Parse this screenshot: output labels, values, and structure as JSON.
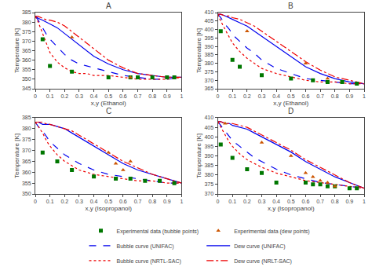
{
  "chart_data": [
    {
      "type": "line",
      "title": "A",
      "xlabel": "x,y (Ethanol)",
      "ylabel": "Temperature [K]",
      "xlim": [
        0,
        1
      ],
      "xticks": [
        0,
        0.1,
        0.2,
        0.3,
        0.4,
        0.5,
        0.6,
        0.7,
        0.8,
        0.9,
        1
      ],
      "ylim": [
        345,
        385
      ],
      "yticks": [
        345,
        350,
        355,
        360,
        365,
        370,
        375,
        380,
        385
      ],
      "grid": false,
      "legend": "bottom",
      "series": [
        {
          "name": "Experimental data (bubble points)",
          "type": "scatter",
          "marker": "square",
          "color": "#007700",
          "x": [
            0.05,
            0.1,
            0.25,
            0.5,
            0.65,
            0.7,
            0.8,
            0.9,
            0.95
          ],
          "values": [
            371,
            357,
            354,
            351,
            351,
            351,
            351,
            351,
            351
          ]
        },
        {
          "name": "Experimental data (dew points)",
          "type": "scatter",
          "marker": "triangle-up",
          "color": "#CC5500",
          "x": [
            0.25,
            0.65
          ],
          "values": [
            372,
            351
          ]
        },
        {
          "name": "Bubble curve (UNIFAC)",
          "type": "line",
          "line_style": "dash",
          "color": "#0000EE",
          "x": [
            0.0,
            0.02,
            0.05,
            0.08,
            0.1,
            0.15,
            0.2,
            0.25,
            0.3,
            0.35,
            0.4,
            0.5,
            0.6,
            0.7,
            0.8,
            0.9,
            1.0
          ],
          "values": [
            383,
            381,
            377,
            373,
            371,
            367,
            363,
            360,
            358,
            357,
            356,
            354,
            352,
            351,
            350,
            350,
            351
          ]
        },
        {
          "name": "Dew curve (UNIFAC)",
          "type": "line",
          "line_style": "solid",
          "color": "#0000EE",
          "x": [
            0.0,
            0.02,
            0.05,
            0.08,
            0.1,
            0.15,
            0.2,
            0.25,
            0.3,
            0.35,
            0.4,
            0.5,
            0.6,
            0.7,
            0.8,
            0.9,
            1.0
          ],
          "values": [
            383,
            382,
            381,
            380,
            379,
            377,
            374,
            371,
            368,
            365,
            362,
            358,
            355,
            353,
            352,
            351,
            351
          ]
        },
        {
          "name": "Bubble curve (NRTL-SAC)",
          "type": "line",
          "line_style": "dot",
          "color": "#EE0000",
          "x": [
            0.0,
            0.02,
            0.05,
            0.08,
            0.1,
            0.15,
            0.2,
            0.25,
            0.3,
            0.35,
            0.4,
            0.5,
            0.6,
            0.7,
            0.8,
            0.9,
            1.0
          ],
          "values": [
            383,
            380,
            374,
            368,
            364,
            359,
            356,
            354,
            353,
            353,
            352,
            352,
            351,
            350,
            350,
            350,
            351
          ]
        },
        {
          "name": "Dew curve (NRLT-SAC)",
          "type": "line",
          "line_style": "dashdot",
          "color": "#EE0000",
          "x": [
            0.0,
            0.02,
            0.05,
            0.08,
            0.1,
            0.15,
            0.2,
            0.25,
            0.3,
            0.35,
            0.4,
            0.5,
            0.6,
            0.7,
            0.8,
            0.9,
            1.0
          ],
          "values": [
            383,
            383,
            382,
            381,
            381,
            380,
            378,
            375,
            372,
            369,
            366,
            360,
            356,
            353,
            352,
            351,
            351
          ]
        }
      ]
    },
    {
      "type": "line",
      "title": "B",
      "xlabel": "x,y (Ethanol)",
      "ylabel": "Temperature [K]",
      "xlim": [
        0,
        1
      ],
      "xticks": [
        0,
        0.1,
        0.2,
        0.3,
        0.4,
        0.5,
        0.6,
        0.7,
        0.8,
        0.9,
        1
      ],
      "ylim": [
        365,
        410
      ],
      "yticks": [
        365,
        370,
        375,
        380,
        385,
        390,
        395,
        400,
        405,
        410
      ],
      "grid": false,
      "legend": "bottom",
      "series": [
        {
          "name": "Experimental data (bubble points)",
          "type": "scatter",
          "marker": "square",
          "color": "#007700",
          "x": [
            0.02,
            0.1,
            0.15,
            0.3,
            0.5,
            0.65,
            0.75,
            0.85,
            0.95
          ],
          "values": [
            399,
            382,
            378,
            373,
            371,
            370,
            369,
            369,
            368
          ]
        },
        {
          "name": "Experimental data (dew points)",
          "type": "scatter",
          "marker": "triangle-up",
          "color": "#CC5500",
          "x": [
            0.2,
            0.6,
            0.75
          ],
          "values": [
            399,
            380,
            371
          ]
        },
        {
          "name": "Bubble curve (UNIFAC)",
          "type": "line",
          "line_style": "dash",
          "color": "#0000EE",
          "x": [
            0.0,
            0.02,
            0.05,
            0.08,
            0.1,
            0.15,
            0.2,
            0.25,
            0.3,
            0.4,
            0.5,
            0.6,
            0.7,
            0.8,
            0.9,
            1.0
          ],
          "values": [
            409,
            407,
            403,
            400,
            397,
            393,
            389,
            386,
            382,
            377,
            374,
            371,
            370,
            369,
            368,
            368
          ]
        },
        {
          "name": "Dew curve (UNIFAC)",
          "type": "line",
          "line_style": "solid",
          "color": "#0000EE",
          "x": [
            0.0,
            0.02,
            0.05,
            0.08,
            0.1,
            0.15,
            0.2,
            0.25,
            0.3,
            0.4,
            0.5,
            0.6,
            0.7,
            0.8,
            0.9,
            1.0
          ],
          "values": [
            409,
            409,
            408,
            407,
            406,
            404,
            402,
            399,
            396,
            390,
            384,
            378,
            374,
            371,
            369,
            368
          ]
        },
        {
          "name": "Bubble curve (NRTL-SAC)",
          "type": "line",
          "line_style": "dot",
          "color": "#EE0000",
          "x": [
            0.0,
            0.02,
            0.05,
            0.08,
            0.1,
            0.15,
            0.2,
            0.25,
            0.3,
            0.4,
            0.5,
            0.6,
            0.7,
            0.8,
            0.9,
            1.0
          ],
          "values": [
            409,
            405,
            400,
            395,
            392,
            387,
            383,
            380,
            377,
            374,
            372,
            370,
            369,
            369,
            368,
            368
          ]
        },
        {
          "name": "Dew curve (NRLT-SAC)",
          "type": "line",
          "line_style": "dashdot",
          "color": "#EE0000",
          "x": [
            0.0,
            0.02,
            0.05,
            0.08,
            0.1,
            0.15,
            0.2,
            0.25,
            0.3,
            0.4,
            0.5,
            0.6,
            0.7,
            0.8,
            0.9,
            1.0
          ],
          "values": [
            409,
            409,
            408,
            408,
            407,
            406,
            404,
            402,
            399,
            393,
            387,
            381,
            376,
            372,
            370,
            368
          ]
        }
      ]
    },
    {
      "type": "line",
      "title": "C",
      "xlabel": "x,y (Isopropanol)",
      "ylabel": "Temperature [K]",
      "xlim": [
        0,
        1
      ],
      "xticks": [
        0,
        0.1,
        0.2,
        0.3,
        0.4,
        0.5,
        0.6,
        0.7,
        0.8,
        0.9,
        1
      ],
      "ylim": [
        350,
        385
      ],
      "yticks": [
        350,
        355,
        360,
        365,
        370,
        375,
        380,
        385
      ],
      "grid": false,
      "legend": "bottom",
      "series": [
        {
          "name": "Experimental data (bubble points)",
          "type": "scatter",
          "marker": "square",
          "color": "#007700",
          "x": [
            0.05,
            0.15,
            0.25,
            0.4,
            0.55,
            0.65,
            0.75,
            0.85,
            0.95
          ],
          "values": [
            369,
            365,
            361,
            358,
            357,
            357,
            356,
            356,
            355
          ]
        },
        {
          "name": "Experimental data (dew points)",
          "type": "scatter",
          "marker": "triangle-up",
          "color": "#CC5500",
          "x": [
            0.5,
            0.55,
            0.6,
            0.65
          ],
          "values": [
            369,
            364,
            361,
            365
          ]
        },
        {
          "name": "Bubble curve (UNIFAC)",
          "type": "line",
          "line_style": "dash",
          "color": "#0000EE",
          "x": [
            0.0,
            0.02,
            0.05,
            0.08,
            0.1,
            0.15,
            0.2,
            0.25,
            0.3,
            0.4,
            0.5,
            0.6,
            0.7,
            0.8,
            0.9,
            1.0
          ],
          "values": [
            383,
            381,
            379,
            376,
            374,
            371,
            368,
            366,
            364,
            361,
            359,
            358,
            357,
            356,
            355,
            355
          ]
        },
        {
          "name": "Dew curve (UNIFAC)",
          "type": "line",
          "line_style": "solid",
          "color": "#0000EE",
          "x": [
            0.0,
            0.02,
            0.05,
            0.08,
            0.1,
            0.15,
            0.2,
            0.25,
            0.3,
            0.4,
            0.5,
            0.6,
            0.7,
            0.8,
            0.9,
            1.0
          ],
          "values": [
            383,
            383,
            382,
            382,
            382,
            381,
            380,
            378,
            376,
            372,
            368,
            364,
            361,
            359,
            357,
            355
          ]
        },
        {
          "name": "Bubble curve (NRTL-SAC)",
          "type": "line",
          "line_style": "dot",
          "color": "#EE0000",
          "x": [
            0.0,
            0.02,
            0.05,
            0.08,
            0.1,
            0.15,
            0.2,
            0.25,
            0.3,
            0.4,
            0.5,
            0.6,
            0.7,
            0.8,
            0.9,
            1.0
          ],
          "values": [
            383,
            381,
            378,
            374,
            372,
            368,
            365,
            363,
            361,
            359,
            358,
            357,
            356,
            356,
            355,
            355
          ]
        },
        {
          "name": "Dew curve (NRLT-SAC)",
          "type": "line",
          "line_style": "dashdot",
          "color": "#EE0000",
          "x": [
            0.0,
            0.02,
            0.05,
            0.08,
            0.1,
            0.15,
            0.2,
            0.25,
            0.3,
            0.4,
            0.5,
            0.6,
            0.7,
            0.8,
            0.9,
            1.0
          ],
          "values": [
            383,
            383,
            383,
            382,
            382,
            381,
            380,
            379,
            377,
            373,
            369,
            365,
            362,
            359,
            357,
            355
          ]
        }
      ]
    },
    {
      "type": "line",
      "title": "D",
      "xlabel": "x,y (Isopropanol)",
      "ylabel": "Temperature [K]",
      "xlim": [
        0,
        1
      ],
      "xticks": [
        0,
        0.1,
        0.2,
        0.3,
        0.4,
        0.5,
        0.6,
        0.7,
        0.8,
        0.9,
        1
      ],
      "ylim": [
        370,
        410
      ],
      "yticks": [
        370,
        375,
        380,
        385,
        390,
        395,
        400,
        405,
        410
      ],
      "grid": false,
      "legend": "bottom",
      "series": [
        {
          "name": "Experimental data (bubble points)",
          "type": "scatter",
          "marker": "square",
          "color": "#007700",
          "x": [
            0.02,
            0.1,
            0.2,
            0.3,
            0.4,
            0.6,
            0.65,
            0.7,
            0.75,
            0.8,
            0.9,
            0.95
          ],
          "values": [
            396,
            389,
            383,
            381,
            376,
            376,
            375,
            375,
            374,
            374,
            373,
            373
          ]
        },
        {
          "name": "Experimental data (dew points)",
          "type": "scatter",
          "marker": "triangle-up",
          "color": "#CC5500",
          "x": [
            0.05,
            0.3,
            0.5,
            0.6,
            0.65,
            0.7,
            0.75,
            0.8
          ],
          "values": [
            407,
            397,
            390,
            381,
            379,
            377,
            376,
            374
          ]
        },
        {
          "name": "Bubble curve (UNIFAC)",
          "type": "line",
          "line_style": "dash",
          "color": "#0000EE",
          "x": [
            0.0,
            0.02,
            0.05,
            0.08,
            0.1,
            0.15,
            0.2,
            0.25,
            0.3,
            0.4,
            0.5,
            0.6,
            0.7,
            0.8,
            0.9,
            1.0
          ],
          "values": [
            408,
            406,
            403,
            400,
            398,
            395,
            392,
            389,
            387,
            383,
            380,
            378,
            376,
            375,
            374,
            373
          ]
        },
        {
          "name": "Dew curve (UNIFAC)",
          "type": "line",
          "line_style": "solid",
          "color": "#0000EE",
          "x": [
            0.0,
            0.02,
            0.05,
            0.08,
            0.1,
            0.15,
            0.2,
            0.25,
            0.3,
            0.4,
            0.5,
            0.6,
            0.7,
            0.8,
            0.9,
            1.0
          ],
          "values": [
            408,
            408,
            407,
            407,
            406,
            405,
            404,
            402,
            400,
            396,
            392,
            387,
            383,
            379,
            376,
            373
          ]
        },
        {
          "name": "Bubble curve (NRTL-SAC)",
          "type": "line",
          "line_style": "dot",
          "color": "#EE0000",
          "x": [
            0.0,
            0.02,
            0.05,
            0.08,
            0.1,
            0.15,
            0.2,
            0.25,
            0.3,
            0.4,
            0.5,
            0.6,
            0.7,
            0.8,
            0.9,
            1.0
          ],
          "values": [
            408,
            405,
            401,
            397,
            395,
            391,
            388,
            386,
            384,
            381,
            379,
            377,
            376,
            375,
            374,
            373
          ]
        },
        {
          "name": "Dew curve (NRLT-SAC)",
          "type": "line",
          "line_style": "dashdot",
          "color": "#EE0000",
          "x": [
            0.0,
            0.02,
            0.05,
            0.08,
            0.1,
            0.15,
            0.2,
            0.25,
            0.3,
            0.4,
            0.5,
            0.6,
            0.7,
            0.8,
            0.9,
            1.0
          ],
          "values": [
            408,
            408,
            407,
            407,
            407,
            406,
            405,
            403,
            401,
            397,
            393,
            388,
            384,
            380,
            376,
            373
          ]
        }
      ]
    }
  ]
}
